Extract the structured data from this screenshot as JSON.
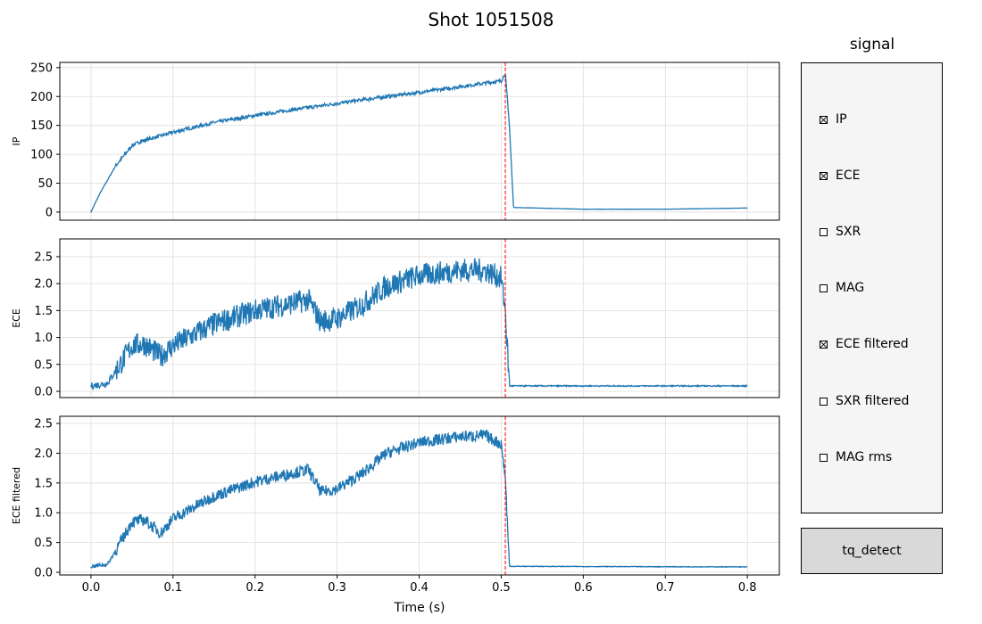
{
  "title": "Shot 1051508",
  "colors": {
    "line": "#1f77b4",
    "marker": "#ff0000",
    "grid": "#dddddd"
  },
  "legend": {
    "title": "signal",
    "items": [
      {
        "label": "IP",
        "checked": true
      },
      {
        "label": "ECE",
        "checked": true
      },
      {
        "label": "SXR",
        "checked": false
      },
      {
        "label": "MAG",
        "checked": false
      },
      {
        "label": "ECE filtered",
        "checked": true
      },
      {
        "label": "SXR filtered",
        "checked": false
      },
      {
        "label": "MAG rms",
        "checked": false
      }
    ]
  },
  "button": {
    "label": "tq_detect"
  },
  "chart_data": [
    {
      "type": "line",
      "ylabel": "IP",
      "xlabel": "",
      "xlim": [
        -0.038,
        0.839
      ],
      "ylim": [
        -14,
        259
      ],
      "yticks": [
        "0",
        "50",
        "100",
        "150",
        "200",
        "250"
      ],
      "ytick_values": [
        0,
        50,
        100,
        150,
        200,
        250
      ],
      "marker_x": 0.505,
      "noise": 3,
      "x": [
        0,
        0.01,
        0.03,
        0.05,
        0.06,
        0.1,
        0.15,
        0.2,
        0.25,
        0.3,
        0.35,
        0.4,
        0.45,
        0.5,
        0.505,
        0.51,
        0.515,
        0.6,
        0.7,
        0.8
      ],
      "y": [
        0,
        30,
        80,
        115,
        122,
        138,
        155,
        167,
        178,
        188,
        198,
        207,
        217,
        227,
        240,
        150,
        8,
        5,
        5,
        7
      ]
    },
    {
      "type": "line",
      "ylabel": "ECE",
      "xlabel": "",
      "xlim": [
        -0.038,
        0.839
      ],
      "ylim": [
        -0.116,
        2.83
      ],
      "yticks": [
        "0.0",
        "0.5",
        "1.0",
        "1.5",
        "2.0",
        "2.5"
      ],
      "ytick_values": [
        0,
        0.5,
        1,
        1.5,
        2,
        2.5
      ],
      "marker_x": 0.505,
      "noise": 0.22,
      "x": [
        0,
        0.02,
        0.04,
        0.05,
        0.065,
        0.085,
        0.1,
        0.15,
        0.2,
        0.25,
        0.265,
        0.28,
        0.3,
        0.33,
        0.36,
        0.4,
        0.45,
        0.48,
        0.5,
        0.505,
        0.51,
        0.8
      ],
      "y": [
        0.1,
        0.15,
        0.6,
        0.85,
        0.88,
        0.65,
        0.85,
        1.25,
        1.5,
        1.65,
        1.7,
        1.3,
        1.35,
        1.6,
        1.95,
        2.15,
        2.25,
        2.25,
        2.1,
        1.5,
        0.1,
        0.1
      ]
    },
    {
      "type": "line",
      "ylabel": "ECE filtered",
      "xlabel": "Time (s)",
      "xlim": [
        -0.038,
        0.839
      ],
      "ylim": [
        -0.045,
        2.62
      ],
      "yticks": [
        "0.0",
        "0.5",
        "1.0",
        "1.5",
        "2.0",
        "2.5"
      ],
      "ytick_values": [
        0,
        0.5,
        1,
        1.5,
        2,
        2.5
      ],
      "marker_x": 0.505,
      "noise": 0.1,
      "xticks": [
        "0.0",
        "0.1",
        "0.2",
        "0.3",
        "0.4",
        "0.5",
        "0.6",
        "0.7",
        "0.8"
      ],
      "xtick_values": [
        0,
        0.1,
        0.2,
        0.3,
        0.4,
        0.5,
        0.6,
        0.7,
        0.8
      ],
      "x": [
        0,
        0.02,
        0.04,
        0.05,
        0.065,
        0.085,
        0.1,
        0.15,
        0.2,
        0.25,
        0.265,
        0.28,
        0.3,
        0.33,
        0.36,
        0.4,
        0.45,
        0.48,
        0.5,
        0.505,
        0.51,
        0.8
      ],
      "y": [
        0.1,
        0.13,
        0.6,
        0.85,
        0.88,
        0.66,
        0.9,
        1.28,
        1.52,
        1.68,
        1.72,
        1.35,
        1.4,
        1.65,
        2.0,
        2.18,
        2.28,
        2.3,
        2.15,
        1.6,
        0.1,
        0.09
      ]
    }
  ]
}
